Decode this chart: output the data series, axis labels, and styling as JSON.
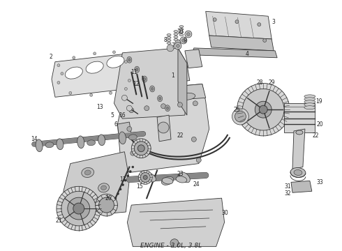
{
  "caption": "ENGINE - 3.0L, 3.8L",
  "caption_fontsize": 6.5,
  "bg": "#ffffff",
  "lc": "#333333",
  "tc": "#222222",
  "lw": 0.6,
  "fig_w": 4.9,
  "fig_h": 3.6,
  "dpi": 100
}
